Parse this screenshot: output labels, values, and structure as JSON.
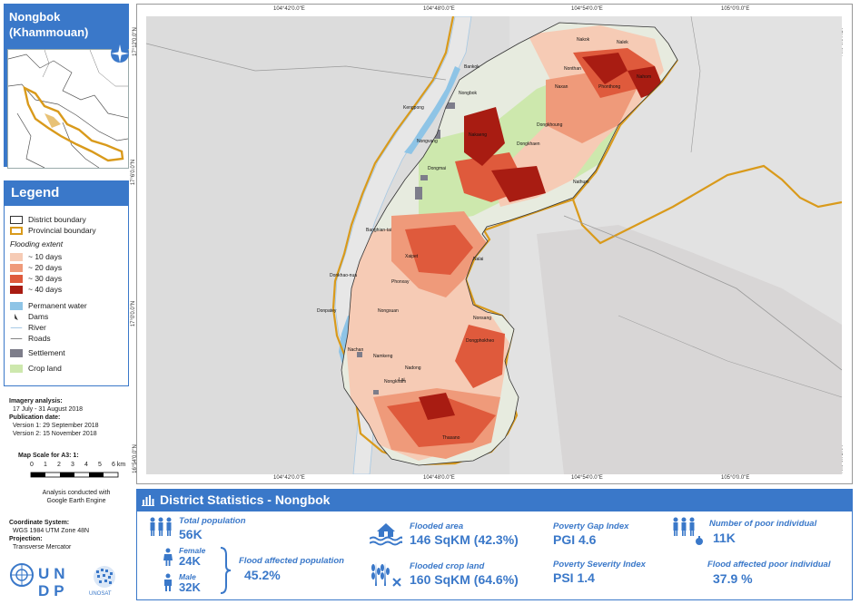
{
  "title": {
    "line1": "Nongbok",
    "line2": "(Khammouan)"
  },
  "legend": {
    "heading": "Legend",
    "district_boundary": "District boundary",
    "provincial_boundary": "Provincial boundary",
    "flooding_extent_title": "Flooding extent",
    "flood_classes": [
      {
        "label": "~ 10 days",
        "color": "#f6cbb5"
      },
      {
        "label": "~ 20 days",
        "color": "#ef9a7a"
      },
      {
        "label": "~ 30 days",
        "color": "#df5a3c"
      },
      {
        "label": "~ 40 days",
        "color": "#a81c12"
      }
    ],
    "permanent_water": "Permanent water",
    "dams": "Dams",
    "river": "River",
    "roads": "Roads",
    "settlement": "Settlement",
    "crop_land": "Crop land",
    "colors": {
      "water": "#8ec4e6",
      "settlement": "#7d7d8a",
      "crop": "#cde8ad",
      "provincial": "#d99a1b"
    }
  },
  "info": {
    "imagery_label": "Imagery analysis:",
    "imagery_value": "17 July - 31 August 2018",
    "publication_label": "Publication date:",
    "version1": "Version 1: 29 September 2018",
    "version2": "Version 2: 15 November 2018",
    "scale_label": "Map Scale for A3: 1:",
    "scale_ticks": [
      "0",
      "1",
      "2",
      "3",
      "4",
      "5",
      "6 km"
    ],
    "analysis_line1": "Analysis conducted with",
    "analysis_line2": "Google Earth Engine",
    "coord_label": "Coordinate System:",
    "coord_value": "WGS 1984 UTM Zone 48N",
    "proj_label": "Projection:",
    "proj_value": "Transverse Mercator",
    "org_undp": "UNDP",
    "org_unosat": "UNOSAT"
  },
  "map": {
    "lon_ticks": [
      "104°42'0.0\"E",
      "104°48'0.0\"E",
      "104°54'0.0\"E",
      "105°0'0.0\"E"
    ],
    "lat_ticks": [
      "17°12'0.0\"N",
      "17°6'0.0\"N",
      "17°0'0.0\"N",
      "16°54'0.0\"N"
    ],
    "places": [
      "Nalek",
      "Nakok",
      "Nahom",
      "Bankok",
      "Nongbok",
      "Nonthan",
      "Kengpong",
      "Dongkhoung",
      "Naxan",
      "Phonthong",
      "Dongmai",
      "Nathum",
      "Nalai",
      "Nakaeng",
      "Nonsang",
      "Dongkhaen",
      "Dongphokheo",
      "Nongvang",
      "Lai",
      "Nadong",
      "Nongkham",
      "Thasano",
      "Donkhao-nua",
      "Donpatey",
      "Nongsuan",
      "Xaipet",
      "Namkeng",
      "Nachan",
      "Phonxay",
      "Banghian-tai"
    ]
  },
  "stats": {
    "heading": "District Statistics - Nongbok",
    "total_population_label": "Total population",
    "total_population_value": "56K",
    "female_label": "Female",
    "female_value": "24K",
    "male_label": "Male",
    "male_value": "32K",
    "flood_affected_population_label": "Flood affected population",
    "flood_affected_population_value": "45.2%",
    "flooded_area_label": "Flooded area",
    "flooded_area_value": "146 SqKM (42.3%)",
    "flooded_crop_label": "Flooded crop land",
    "flooded_crop_value": "160 SqKM (64.6%)",
    "pgi_label": "Poverty Gap Index",
    "pgi_value": "PGI  4.6",
    "psi_label": "Poverty Severity Index",
    "psi_value": "PSI  1.4",
    "poor_label": "Number of poor individual",
    "poor_value": "11K",
    "flood_poor_label": "Flood affected poor individual",
    "flood_poor_value": "37.9 %"
  }
}
